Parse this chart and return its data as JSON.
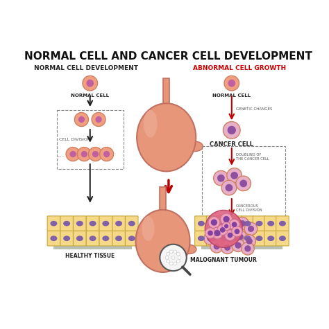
{
  "title": "NORMAL CELL AND CANCER CELL DEVELOPMENT",
  "subtitle_left": "NORMAL CELL DEVELOPMENT",
  "subtitle_right": "ABNORMAL CELL GROWTH",
  "subtitle_right_color": "#cc0000",
  "bg_color": "#ffffff",
  "cell_outer_color": "#f0a080",
  "cell_inner_color": "#c060a0",
  "cell_edge_color": "#d08060",
  "cancer_outer_color": "#e8b0c8",
  "cancer_inner_color": "#9050a0",
  "arrow_color_left": "#222222",
  "arrow_color_right": "#bb0000",
  "stomach_color": "#e8967a",
  "stomach_edge_color": "#c07060",
  "tissue_cell_color": "#f5d888",
  "tissue_cell_edge": "#c8a840",
  "tissue_inner_color": "#8060a8",
  "dashed_box_color": "#888888",
  "tumour_color": "#e06080",
  "tumour_edge": "#b04060"
}
